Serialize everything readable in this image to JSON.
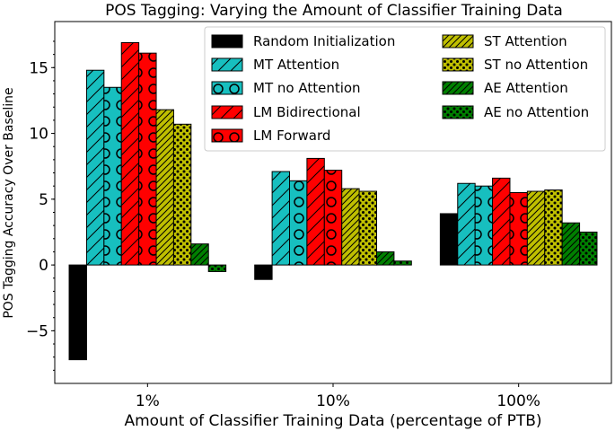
{
  "chart_data": {
    "type": "bar",
    "title": "POS Tagging: Varying the Amount of Classifier Training Data",
    "xlabel": "Amount of Classifier Training Data (percentage of PTB)",
    "ylabel": "POS Tagging Accuracy Over Baseline",
    "categories": [
      "1%",
      "10%",
      "100%"
    ],
    "ylim": [
      -9,
      18.5
    ],
    "yticks": [
      -5,
      0,
      5,
      10,
      15
    ],
    "ytick_labels": [
      "−5",
      "0",
      "5",
      "10",
      "15"
    ],
    "legend_position": "top-right",
    "series": [
      {
        "name": "Random Initialization",
        "color": "#000000",
        "pattern": "solid",
        "values": [
          -7.2,
          -1.1,
          3.9
        ]
      },
      {
        "name": "MT Attention",
        "color": "#17bfbf",
        "pattern": "diagonal",
        "values": [
          14.8,
          7.1,
          6.2
        ]
      },
      {
        "name": "MT no Attention",
        "color": "#17bfbf",
        "pattern": "circles",
        "values": [
          13.5,
          6.4,
          6.0
        ]
      },
      {
        "name": "LM Bidirectional",
        "color": "#ff0000",
        "pattern": "diagonal",
        "values": [
          16.9,
          8.1,
          6.6
        ]
      },
      {
        "name": "LM Forward",
        "color": "#ff0000",
        "pattern": "circles",
        "values": [
          16.1,
          7.2,
          5.5
        ]
      },
      {
        "name": "ST Attention",
        "color": "#bfbf00",
        "pattern": "dense-diagonal",
        "values": [
          11.8,
          5.8,
          5.6
        ]
      },
      {
        "name": "ST no Attention",
        "color": "#bfbf00",
        "pattern": "dots",
        "values": [
          10.7,
          5.6,
          5.7
        ]
      },
      {
        "name": "AE Attention",
        "color": "#007f00",
        "pattern": "dense-diagonal",
        "values": [
          1.6,
          1.0,
          3.2
        ]
      },
      {
        "name": "AE no Attention",
        "color": "#007f00",
        "pattern": "dots",
        "values": [
          -0.5,
          0.3,
          2.5
        ]
      }
    ]
  }
}
